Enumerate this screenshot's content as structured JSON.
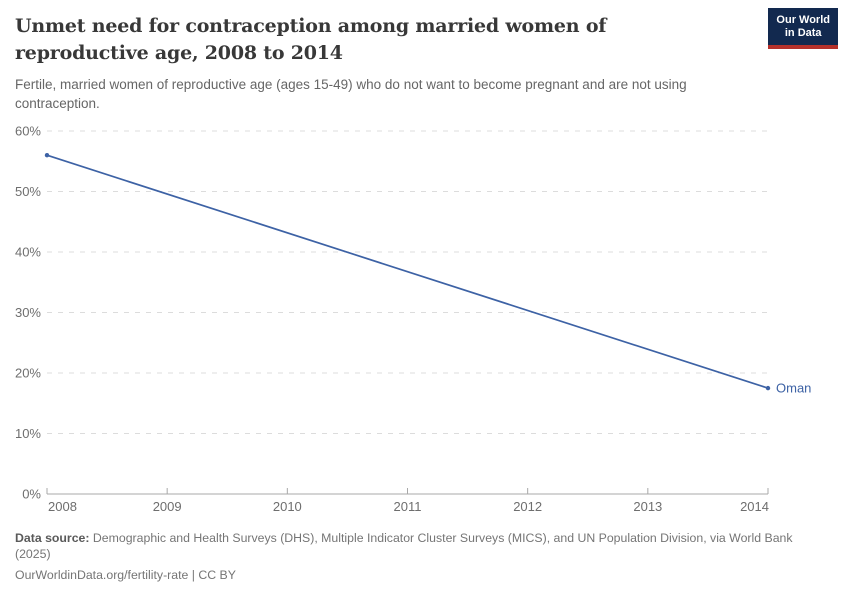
{
  "header": {
    "title": "Unmet need for contraception among married women of reproductive age, 2008 to 2014",
    "subtitle": "Fertile, married women of reproductive age (ages 15-49) who do not want to become pregnant and are not using contraception.",
    "logo": {
      "line1": "Our World",
      "line2": "in Data"
    }
  },
  "chart_data": {
    "type": "line",
    "title": "Unmet need for contraception among married women of reproductive age, 2008 to 2014",
    "xlabel": "",
    "ylabel": "",
    "xlim": [
      2008,
      2014
    ],
    "ylim": [
      0,
      60
    ],
    "grid": "horizontal-dashed",
    "legend_position": "end-of-line-label",
    "x_ticks": [
      {
        "value": 2008,
        "label": "2008"
      },
      {
        "value": 2009,
        "label": "2009"
      },
      {
        "value": 2010,
        "label": "2010"
      },
      {
        "value": 2011,
        "label": "2011"
      },
      {
        "value": 2012,
        "label": "2012"
      },
      {
        "value": 2013,
        "label": "2013"
      },
      {
        "value": 2014,
        "label": "2014"
      }
    ],
    "y_ticks": [
      {
        "value": 0,
        "label": "0%"
      },
      {
        "value": 10,
        "label": "10%"
      },
      {
        "value": 20,
        "label": "20%"
      },
      {
        "value": 30,
        "label": "30%"
      },
      {
        "value": 40,
        "label": "40%"
      },
      {
        "value": 50,
        "label": "50%"
      },
      {
        "value": 60,
        "label": "60%"
      }
    ],
    "series": [
      {
        "name": "Oman",
        "color": "#3d62a5",
        "points": [
          {
            "x": 2008,
            "y": 56
          },
          {
            "x": 2014,
            "y": 17.5
          }
        ]
      }
    ]
  },
  "colors": {
    "line": "#3d62a5",
    "series_label": "#3d62a5",
    "grid": "#dcdcdc",
    "axis": "#a8a8a8",
    "tick_label": "#6e6e6e",
    "logo_bg": "#12294f",
    "logo_accent": "#b5312b"
  },
  "footer": {
    "datasource_label": "Data source:",
    "datasource_text": " Demographic and Health Surveys (DHS), Multiple Indicator Cluster Surveys (MICS), and UN Population Division, via World Bank (2025)",
    "citation": "OurWorldinData.org/fertility-rate | CC BY"
  }
}
